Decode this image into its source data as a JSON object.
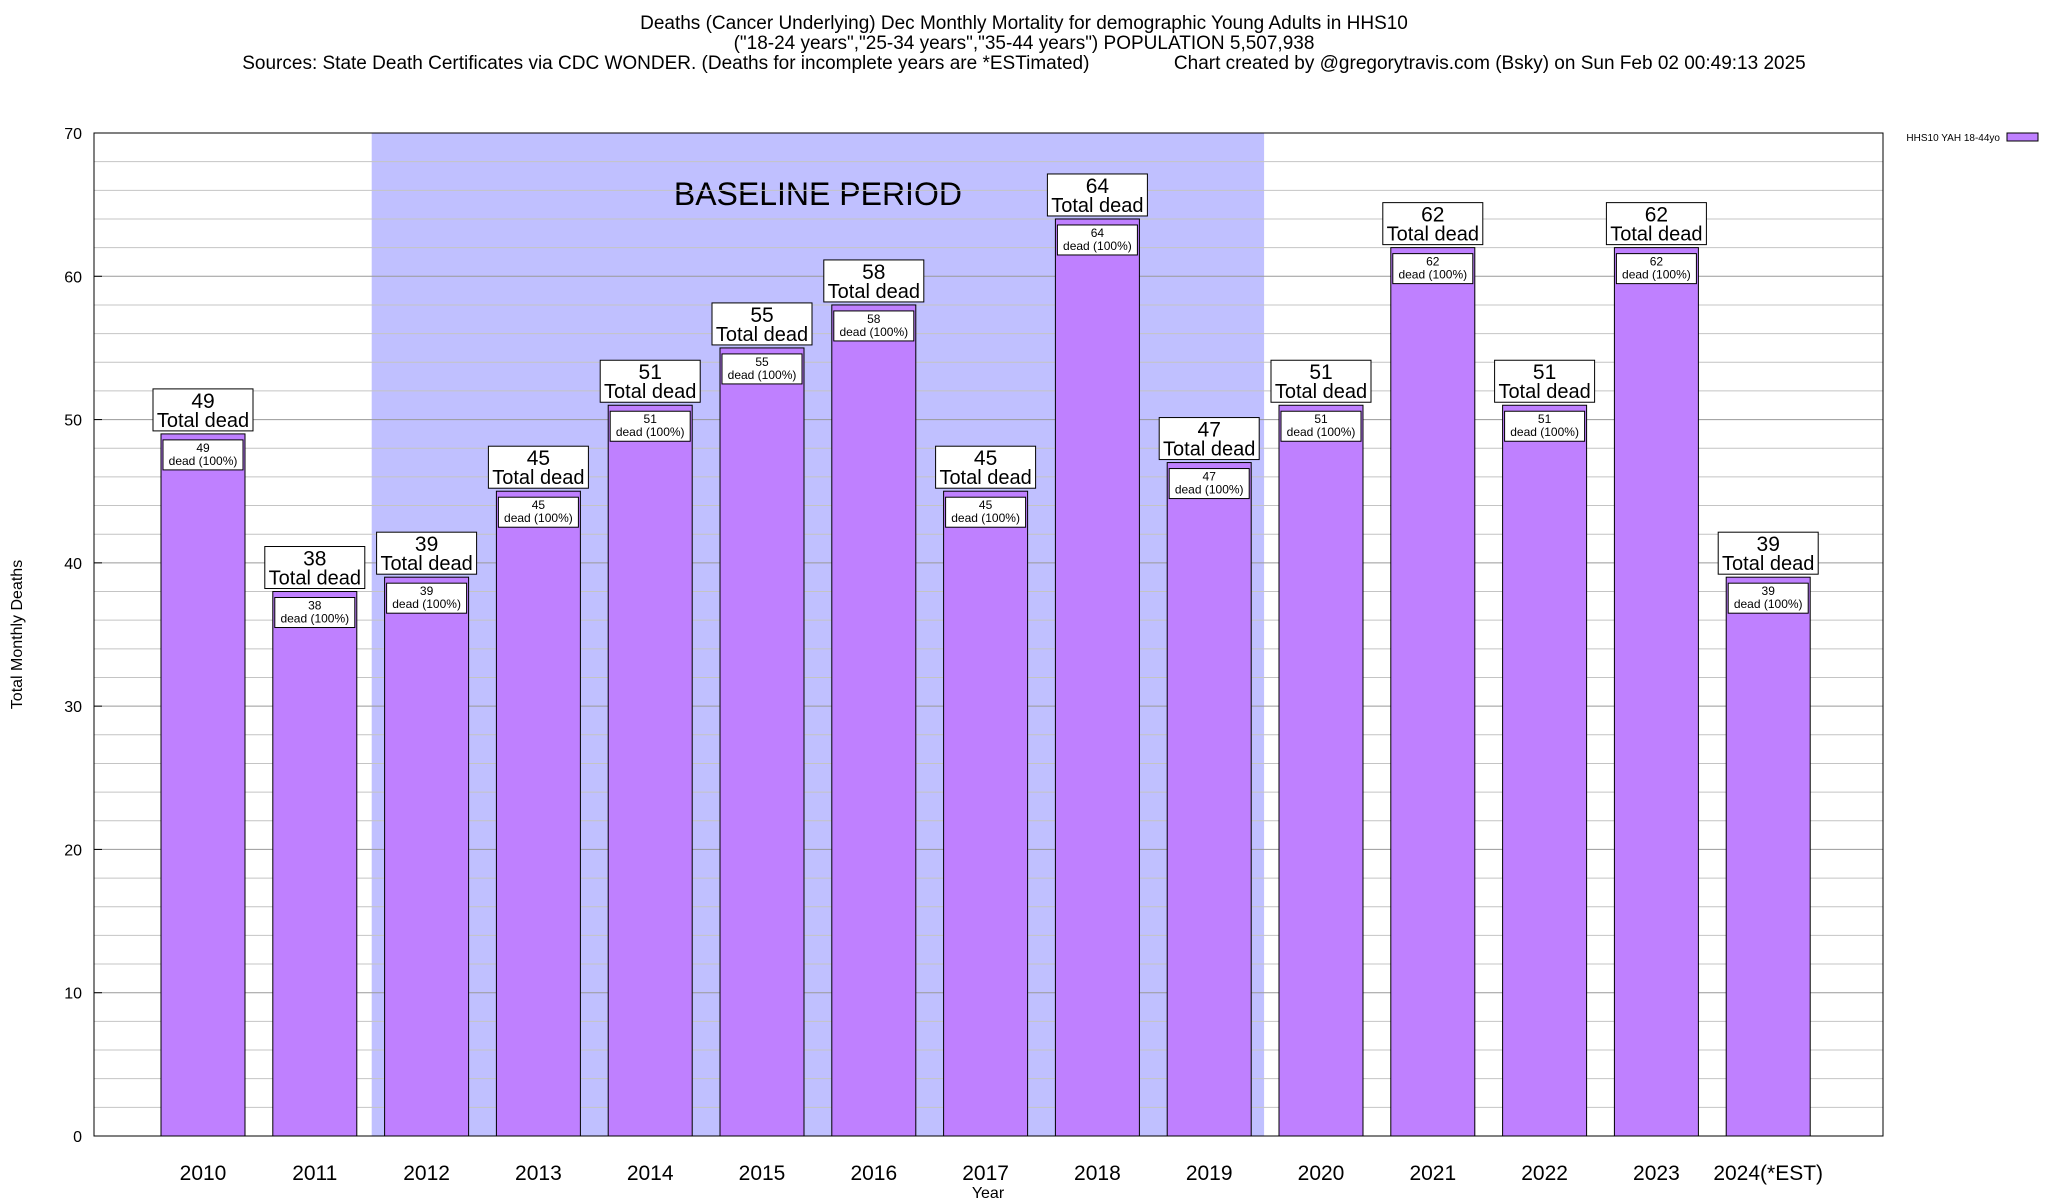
{
  "title": {
    "line1": "Deaths (Cancer Underlying) Dec Monthly Mortality for demographic Young Adults in HHS10",
    "line2": "(\"18-24 years\",\"25-34 years\",\"35-44 years\") POPULATION 5,507,938",
    "line3": "Sources: State Death Certificates via CDC WONDER. (Deaths for incomplete years are *ESTimated)                Chart created by @gregorytravis.com (Bsky) on Sun Feb 02 00:49:13 2025"
  },
  "chart_data": {
    "type": "bar",
    "categories": [
      "2010",
      "2011",
      "2012",
      "2013",
      "2014",
      "2015",
      "2016",
      "2017",
      "2018",
      "2019",
      "2020",
      "2021",
      "2022",
      "2023",
      "2024(*EST)"
    ],
    "series": [
      {
        "name": "HHS10 YAH 18-44yo",
        "values": [
          49,
          38,
          39,
          45,
          51,
          55,
          58,
          45,
          64,
          47,
          51,
          62,
          51,
          62,
          39
        ],
        "color": "#bf80ff"
      }
    ],
    "xlabel": "Year",
    "ylabel": "Total Monthly Deaths",
    "ylim": [
      0,
      70
    ],
    "yticks": [
      0,
      10,
      20,
      30,
      40,
      50,
      60,
      70
    ],
    "grid": true,
    "legend_position": "top-right",
    "bar_label_top": "Total dead",
    "bar_label_inner": "dead (100%)",
    "annotation": {
      "text": "BASELINE PERIOD",
      "x_start": "2012",
      "x_end": "2019",
      "color": "#c0c0ff"
    }
  }
}
